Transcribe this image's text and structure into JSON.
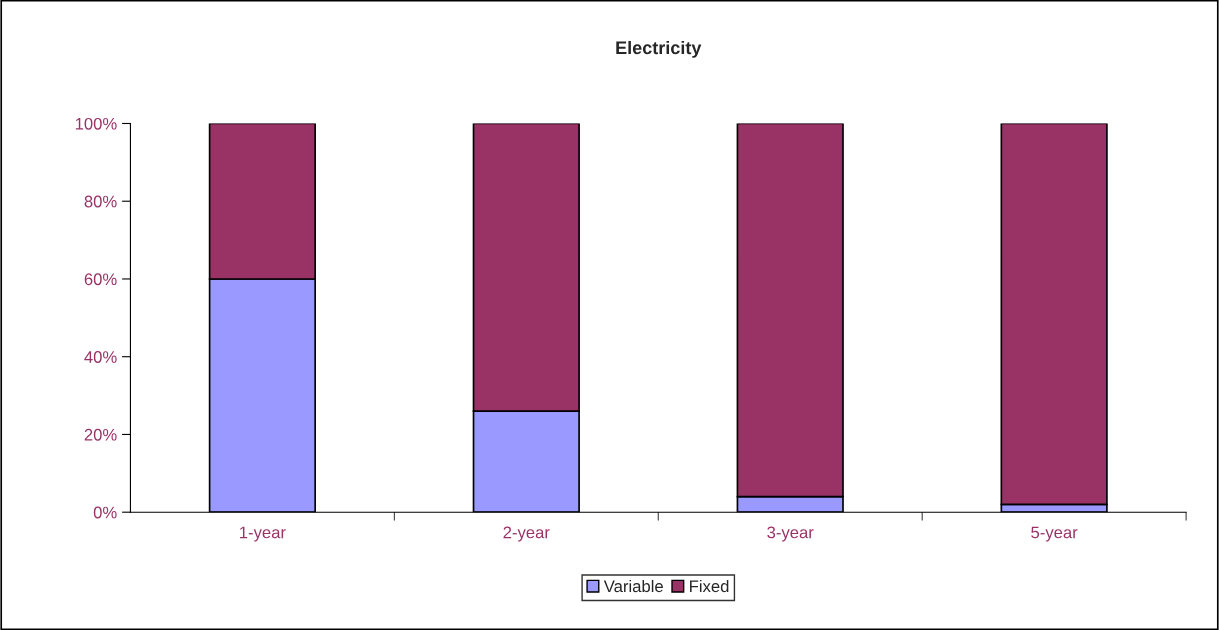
{
  "chart_data": {
    "type": "bar",
    "title": "Electricity",
    "categories": [
      "1-year",
      "2-year",
      "3-year",
      "5-year"
    ],
    "stacked": true,
    "series": [
      {
        "name": "Variable",
        "color": "#9999ff",
        "values": [
          60,
          26,
          4,
          2
        ]
      },
      {
        "name": "Fixed",
        "color": "#993366",
        "values": [
          40,
          74,
          96,
          98
        ]
      }
    ],
    "ylim": [
      0,
      100
    ],
    "yticks": [
      {
        "value": 0,
        "label": "0%"
      },
      {
        "value": 20,
        "label": "20%"
      },
      {
        "value": 40,
        "label": "40%"
      },
      {
        "value": 60,
        "label": "60%"
      },
      {
        "value": 80,
        "label": "80%"
      },
      {
        "value": 100,
        "label": "100%"
      }
    ],
    "grid": false,
    "legend": "bottom"
  }
}
